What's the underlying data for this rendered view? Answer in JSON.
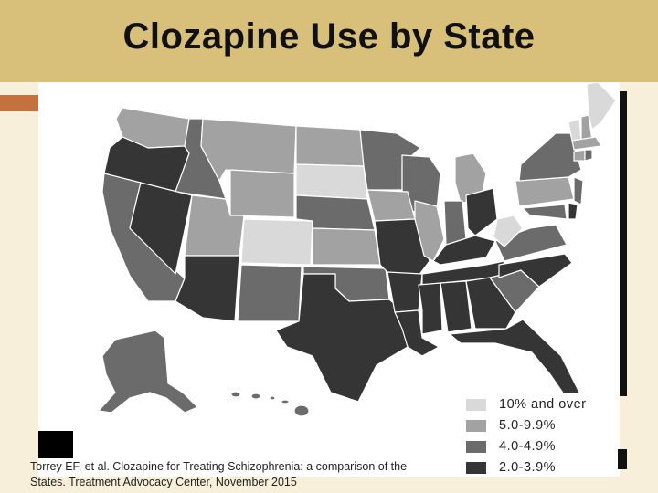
{
  "title": "Clozapine Use by State",
  "citation": {
    "line1": "Torrey EF, et al. Clozapine for Treating Schizophrenia: a comparison of the",
    "line2": "States. Treatment Advocacy Center, November  2015"
  },
  "legend": [
    {
      "label": "10% and over",
      "color": "#d9d9d9"
    },
    {
      "label": "5.0-9.9%",
      "color": "#a2a2a2"
    },
    {
      "label": "4.0-4.9%",
      "color": "#6b6b6b"
    },
    {
      "label": "2.0-3.9%",
      "color": "#353535"
    }
  ]
}
